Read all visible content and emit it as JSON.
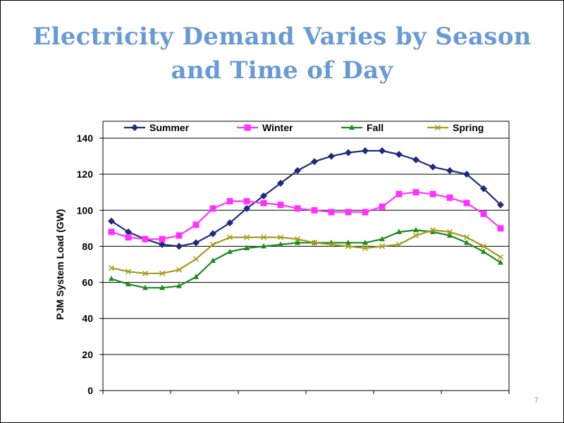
{
  "slide": {
    "title_line1": "Electricity Demand Varies by Season",
    "title_line2": "and Time of Day",
    "page_number": "7"
  },
  "colors": {
    "title": "#6a9ad2",
    "summer": "#1f2a7a",
    "winter": "#ff33ff",
    "fall": "#1e8a1e",
    "spring": "#a39a1a",
    "grid": "#000000"
  },
  "chart_data": {
    "type": "line",
    "title": "",
    "xlabel": "",
    "ylabel": "PJM System Load (GW)",
    "ylim": [
      0,
      140
    ],
    "yticks": [
      0,
      20,
      40,
      60,
      80,
      100,
      120,
      140
    ],
    "grid": true,
    "legend_position": "top",
    "x": [
      1,
      2,
      3,
      4,
      5,
      6,
      7,
      8,
      9,
      10,
      11,
      12,
      13,
      14,
      15,
      16,
      17,
      18,
      19,
      20,
      21,
      22,
      23,
      24
    ],
    "series": [
      {
        "name": "Summer",
        "color": "#1f2a7a",
        "marker": "diamond",
        "values": [
          94,
          88,
          84,
          81,
          80,
          82,
          87,
          93,
          101,
          108,
          115,
          122,
          127,
          130,
          132,
          133,
          133,
          131,
          128,
          124,
          122,
          120,
          112,
          103
        ]
      },
      {
        "name": "Winter",
        "color": "#ff33ff",
        "marker": "square",
        "values": [
          88,
          85,
          84,
          84,
          86,
          92,
          101,
          105,
          105,
          104,
          103,
          101,
          100,
          99,
          99,
          99,
          102,
          109,
          110,
          109,
          107,
          104,
          98,
          90
        ]
      },
      {
        "name": "Fall",
        "color": "#1e8a1e",
        "marker": "triangle",
        "values": [
          62,
          59,
          57,
          57,
          58,
          63,
          72,
          77,
          79,
          80,
          81,
          82,
          82,
          82,
          82,
          82,
          84,
          88,
          89,
          88,
          86,
          82,
          77,
          71
        ]
      },
      {
        "name": "Spring",
        "color": "#a39a1a",
        "marker": "x",
        "values": [
          68,
          66,
          65,
          65,
          67,
          73,
          81,
          85,
          85,
          85,
          85,
          84,
          82,
          81,
          80,
          79,
          80,
          81,
          86,
          89,
          88,
          85,
          80,
          74
        ]
      }
    ]
  }
}
